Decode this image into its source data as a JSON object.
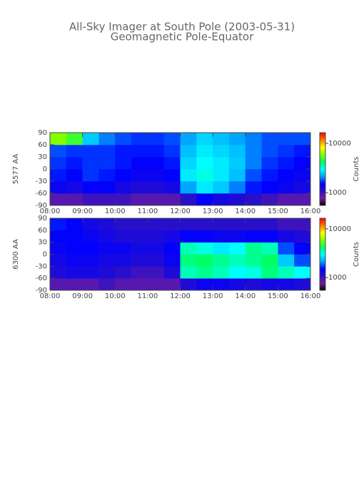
{
  "title": "All-Sky Imager at South Pole (2003-05-31)",
  "subtitle": "Geomagnetic Pole-Equator",
  "chart_data": [
    {
      "type": "heatmap",
      "ylabel": "5577 AA",
      "colorbar_label": "Counts",
      "xbins": [
        8,
        8.5,
        9,
        9.5,
        10,
        10.5,
        11,
        11.5,
        12,
        12.5,
        13,
        13.5,
        14,
        14.5,
        15,
        15.5,
        16
      ],
      "ybins": [
        -90,
        -60,
        -30,
        0,
        30,
        60,
        90
      ],
      "z": [
        [
          900,
          900,
          1000,
          1000,
          1000,
          900,
          900,
          900,
          1100,
          1500,
          1300,
          1200,
          1100,
          1000,
          900,
          900
        ],
        [
          1400,
          1300,
          1500,
          1500,
          1300,
          1200,
          1200,
          1300,
          2200,
          2800,
          2500,
          2000,
          1600,
          1500,
          1400,
          1300
        ],
        [
          1600,
          1500,
          1700,
          1600,
          1500,
          1400,
          1400,
          1500,
          2800,
          3200,
          2800,
          2400,
          1800,
          1600,
          1500,
          1400
        ],
        [
          1700,
          1600,
          1700,
          1700,
          1600,
          1500,
          1500,
          1600,
          2600,
          3000,
          2800,
          2500,
          2000,
          1700,
          1600,
          1500
        ],
        [
          1800,
          1700,
          1700,
          1700,
          1600,
          1600,
          1600,
          1700,
          2400,
          2800,
          2600,
          2400,
          2000,
          1800,
          1700,
          1600
        ],
        [
          6000,
          5000,
          2500,
          2000,
          1800,
          1700,
          1700,
          1800,
          2200,
          2600,
          2400,
          2200,
          2000,
          1800,
          1800,
          1800
        ]
      ],
      "xlim": [
        8,
        16
      ],
      "xticks": [
        {
          "value": 8,
          "label": "08:00"
        },
        {
          "value": 9,
          "label": "09:00"
        },
        {
          "value": 10,
          "label": "10:00"
        },
        {
          "value": 11,
          "label": "11:00"
        },
        {
          "value": 12,
          "label": "12:00"
        },
        {
          "value": 13,
          "label": "13:00"
        },
        {
          "value": 14,
          "label": "14:00"
        },
        {
          "value": 15,
          "label": "15:00"
        },
        {
          "value": 16,
          "label": "16:00"
        }
      ],
      "ylim": [
        -90,
        90
      ],
      "yticks": [
        -90,
        -60,
        -30,
        0,
        30,
        60,
        90
      ],
      "clim": [
        550,
        16500
      ],
      "cticks": [
        1000,
        10000
      ],
      "color_log": true,
      "colormap": [
        "#000000",
        "#7a1e9a",
        "#2a10c8",
        "#0000ff",
        "#00a0ff",
        "#00ffff",
        "#00ff60",
        "#80ff00",
        "#ffff00",
        "#ff8000",
        "#ff0000"
      ]
    },
    {
      "type": "heatmap",
      "ylabel": "6300 AA",
      "colorbar_label": "Counts",
      "xbins": [
        8,
        8.5,
        9,
        9.5,
        10,
        10.5,
        11,
        11.5,
        12,
        12.5,
        13,
        13.5,
        14,
        14.5,
        15,
        15.5,
        16
      ],
      "ybins": [
        -90,
        -60,
        -30,
        0,
        30,
        60,
        90
      ],
      "z": [
        [
          900,
          900,
          900,
          1000,
          900,
          900,
          900,
          900,
          1200,
          1400,
          1400,
          1300,
          1200,
          1300,
          1300,
          1200
        ],
        [
          1200,
          1300,
          1300,
          1200,
          1100,
          1000,
          1000,
          1200,
          3500,
          3800,
          3500,
          3000,
          3200,
          4000,
          3500,
          3000
        ],
        [
          1300,
          1400,
          1400,
          1300,
          1300,
          1200,
          1200,
          1400,
          4000,
          4200,
          3800,
          3500,
          3800,
          4200,
          2500,
          1800
        ],
        [
          1400,
          1500,
          1500,
          1400,
          1400,
          1300,
          1300,
          1500,
          3500,
          3200,
          2800,
          3000,
          3800,
          3500,
          1800,
          1500
        ],
        [
          1500,
          1500,
          1400,
          1300,
          1200,
          1200,
          1200,
          1300,
          1500,
          1500,
          1400,
          1400,
          1500,
          1500,
          1300,
          1200
        ],
        [
          1600,
          1500,
          1300,
          1200,
          1100,
          1100,
          1100,
          1100,
          1100,
          1100,
          1100,
          1100,
          1100,
          1100,
          1000,
          1000
        ]
      ],
      "xlim": [
        8,
        16
      ],
      "xticks": [
        {
          "value": 8,
          "label": "08:00"
        },
        {
          "value": 9,
          "label": "09:00"
        },
        {
          "value": 10,
          "label": "10:00"
        },
        {
          "value": 11,
          "label": "11:00"
        },
        {
          "value": 12,
          "label": "12:00"
        },
        {
          "value": 13,
          "label": "13:00"
        },
        {
          "value": 14,
          "label": "14:00"
        },
        {
          "value": 15,
          "label": "15:00"
        },
        {
          "value": 16,
          "label": "16:00"
        }
      ],
      "ylim": [
        -90,
        90
      ],
      "yticks": [
        -90,
        -60,
        -30,
        0,
        30,
        60,
        90
      ],
      "clim": [
        550,
        16500
      ],
      "cticks": [
        1000,
        10000
      ],
      "color_log": true,
      "colormap": [
        "#000000",
        "#7a1e9a",
        "#2a10c8",
        "#0000ff",
        "#00a0ff",
        "#00ffff",
        "#00ff60",
        "#80ff00",
        "#ffff00",
        "#ff8000",
        "#ff0000"
      ]
    }
  ]
}
